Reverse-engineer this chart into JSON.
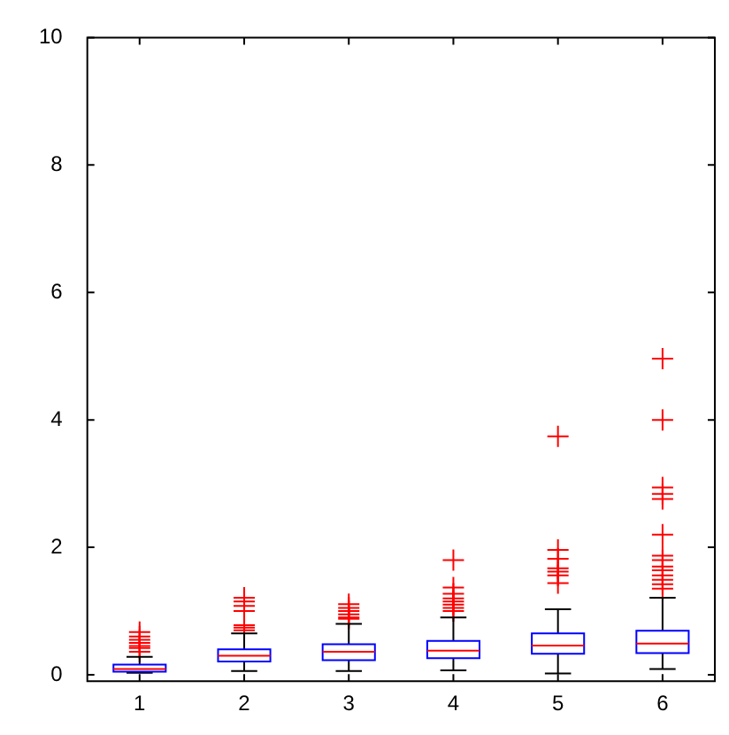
{
  "chart_data": {
    "type": "box",
    "categories": [
      "1",
      "2",
      "3",
      "4",
      "5",
      "6"
    ],
    "color": "#0000ff",
    "ylim": [
      -0.1,
      10
    ],
    "yticks": [
      0,
      2,
      4,
      6,
      8,
      10
    ],
    "grid": false,
    "marker": "cross",
    "boxes": [
      {
        "low": 0.03,
        "q1": 0.05,
        "median": 0.09,
        "q3": 0.16,
        "high": 0.28,
        "outliers": [
          0.36,
          0.42,
          0.45,
          0.5,
          0.55,
          0.6,
          0.67
        ]
      },
      {
        "low": 0.06,
        "q1": 0.21,
        "median": 0.3,
        "q3": 0.4,
        "high": 0.65,
        "outliers": [
          0.7,
          0.74,
          0.78,
          1.0,
          1.08,
          1.15,
          1.21
        ]
      },
      {
        "low": 0.06,
        "q1": 0.23,
        "median": 0.36,
        "q3": 0.48,
        "high": 0.8,
        "outliers": [
          0.88,
          0.9,
          0.95,
          1.0,
          1.05,
          1.11
        ]
      },
      {
        "low": 0.07,
        "q1": 0.26,
        "median": 0.38,
        "q3": 0.53,
        "high": 0.9,
        "outliers": [
          1.0,
          1.05,
          1.1,
          1.15,
          1.2,
          1.27,
          1.37,
          1.8
        ]
      },
      {
        "low": 0.02,
        "q1": 0.33,
        "median": 0.46,
        "q3": 0.65,
        "high": 1.03,
        "outliers": [
          1.44,
          1.56,
          1.62,
          1.67,
          1.82,
          1.96,
          3.74
        ]
      },
      {
        "low": 0.09,
        "q1": 0.34,
        "median": 0.49,
        "q3": 0.69,
        "high": 1.21,
        "outliers": [
          1.35,
          1.42,
          1.49,
          1.56,
          1.64,
          1.7,
          1.8,
          1.87,
          2.2,
          2.76,
          2.84,
          2.94,
          4.0,
          4.96
        ]
      }
    ]
  }
}
